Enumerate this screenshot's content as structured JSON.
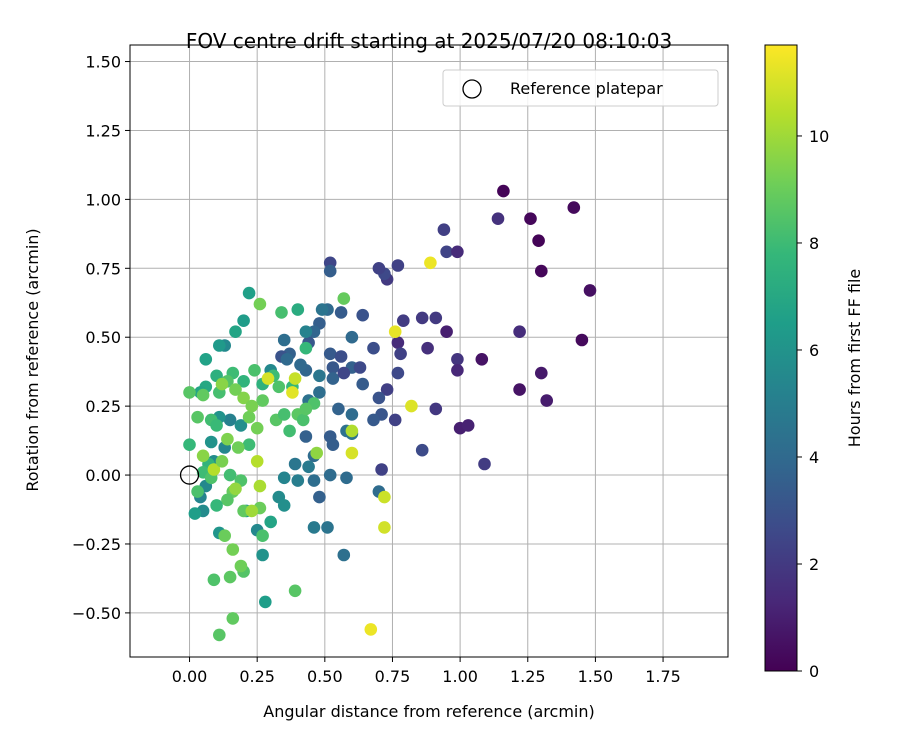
{
  "chart_data": {
    "type": "scatter",
    "title": "FOV centre drift starting at 2025/07/20 08:10:03",
    "xlabel": "Angular distance from reference (arcmin)",
    "ylabel": "Rotation from reference (arcmin)",
    "xlim": [
      -0.22,
      1.99
    ],
    "ylim": [
      -0.66,
      1.56
    ],
    "xticks": [
      "0.00",
      "0.25",
      "0.50",
      "0.75",
      "1.00",
      "1.25",
      "1.50",
      "1.75"
    ],
    "xtick_values": [
      0,
      0.25,
      0.5,
      0.75,
      1.0,
      1.25,
      1.5,
      1.75
    ],
    "yticks": [
      "−0.50",
      "−0.25",
      "0.00",
      "0.25",
      "0.50",
      "0.75",
      "1.00",
      "1.25",
      "1.50"
    ],
    "ytick_values": [
      -0.5,
      -0.25,
      0,
      0.25,
      0.5,
      0.75,
      1.0,
      1.25,
      1.5
    ],
    "grid": true,
    "legend": {
      "position": "top-right",
      "entries": [
        "Reference platepar"
      ]
    },
    "reference_point": {
      "name": "Reference platepar",
      "x": 0.0,
      "y": 0.0
    },
    "colorbar": {
      "label": "Hours from first FF file",
      "colormap": "viridis",
      "range": [
        0,
        11.7
      ],
      "ticks": [
        "0",
        "2",
        "4",
        "6",
        "8",
        "10"
      ],
      "tick_values": [
        0,
        2,
        4,
        6,
        8,
        10
      ]
    },
    "colormap_stops": [
      "#440154",
      "#482878",
      "#3e4989",
      "#31688e",
      "#26828e",
      "#1f9e89",
      "#35b779",
      "#6ece58",
      "#b5de2b",
      "#fde725"
    ],
    "points": [
      {
        "x": 1.16,
        "y": 1.03,
        "c": 0.1
      },
      {
        "x": 1.42,
        "y": 0.97,
        "c": 0.3
      },
      {
        "x": 1.26,
        "y": 0.93,
        "c": 0.2
      },
      {
        "x": 1.14,
        "y": 0.93,
        "c": 1.7
      },
      {
        "x": 1.29,
        "y": 0.85,
        "c": 0.1
      },
      {
        "x": 0.94,
        "y": 0.89,
        "c": 2.2
      },
      {
        "x": 0.95,
        "y": 0.81,
        "c": 2.4
      },
      {
        "x": 0.99,
        "y": 0.81,
        "c": 1.4
      },
      {
        "x": 1.3,
        "y": 0.74,
        "c": 0.2
      },
      {
        "x": 1.48,
        "y": 0.67,
        "c": 0.5
      },
      {
        "x": 1.22,
        "y": 0.52,
        "c": 1.5
      },
      {
        "x": 1.45,
        "y": 0.49,
        "c": 0.3
      },
      {
        "x": 1.08,
        "y": 0.42,
        "c": 0.6
      },
      {
        "x": 1.3,
        "y": 0.37,
        "c": 0.8
      },
      {
        "x": 1.22,
        "y": 0.31,
        "c": 0.6
      },
      {
        "x": 1.32,
        "y": 0.27,
        "c": 0.9
      },
      {
        "x": 1.0,
        "y": 0.17,
        "c": 1.0
      },
      {
        "x": 1.03,
        "y": 0.18,
        "c": 1.1
      },
      {
        "x": 1.09,
        "y": 0.04,
        "c": 2.1
      },
      {
        "x": 0.99,
        "y": 0.42,
        "c": 1.8
      },
      {
        "x": 0.99,
        "y": 0.38,
        "c": 1.3
      },
      {
        "x": 0.91,
        "y": 0.57,
        "c": 2.0
      },
      {
        "x": 0.95,
        "y": 0.52,
        "c": 1.0
      },
      {
        "x": 0.86,
        "y": 0.57,
        "c": 2.0
      },
      {
        "x": 0.88,
        "y": 0.46,
        "c": 1.6
      },
      {
        "x": 0.91,
        "y": 0.24,
        "c": 1.9
      },
      {
        "x": 0.86,
        "y": 0.09,
        "c": 2.7
      },
      {
        "x": 0.79,
        "y": 0.56,
        "c": 2.1
      },
      {
        "x": 0.77,
        "y": 0.48,
        "c": 1.4
      },
      {
        "x": 0.78,
        "y": 0.44,
        "c": 2.3
      },
      {
        "x": 0.77,
        "y": 0.76,
        "c": 2.3
      },
      {
        "x": 0.73,
        "y": 0.71,
        "c": 2.0
      },
      {
        "x": 0.72,
        "y": 0.73,
        "c": 2.6
      },
      {
        "x": 0.7,
        "y": 0.75,
        "c": 2.3
      },
      {
        "x": 0.77,
        "y": 0.37,
        "c": 2.6
      },
      {
        "x": 0.73,
        "y": 0.31,
        "c": 2.2
      },
      {
        "x": 0.76,
        "y": 0.2,
        "c": 2.3
      },
      {
        "x": 0.71,
        "y": 0.22,
        "c": 3.1
      },
      {
        "x": 0.68,
        "y": 0.2,
        "c": 3.3
      },
      {
        "x": 0.7,
        "y": 0.28,
        "c": 3.0
      },
      {
        "x": 0.71,
        "y": 0.02,
        "c": 2.3
      },
      {
        "x": 0.7,
        "y": -0.06,
        "c": 4.1
      },
      {
        "x": 0.68,
        "y": 0.46,
        "c": 2.8
      },
      {
        "x": 0.64,
        "y": 0.58,
        "c": 3.0
      },
      {
        "x": 0.52,
        "y": 0.77,
        "c": 2.5
      },
      {
        "x": 0.52,
        "y": 0.74,
        "c": 3.5
      },
      {
        "x": 0.56,
        "y": 0.59,
        "c": 3.4
      },
      {
        "x": 0.51,
        "y": 0.6,
        "c": 4.0
      },
      {
        "x": 0.49,
        "y": 0.6,
        "c": 4.5
      },
      {
        "x": 0.48,
        "y": 0.55,
        "c": 3.5
      },
      {
        "x": 0.46,
        "y": 0.52,
        "c": 3.8
      },
      {
        "x": 0.44,
        "y": 0.48,
        "c": 3.2
      },
      {
        "x": 0.6,
        "y": 0.5,
        "c": 4.0
      },
      {
        "x": 0.52,
        "y": 0.44,
        "c": 3.3
      },
      {
        "x": 0.56,
        "y": 0.43,
        "c": 2.8
      },
      {
        "x": 0.6,
        "y": 0.39,
        "c": 3.6
      },
      {
        "x": 0.63,
        "y": 0.39,
        "c": 2.6
      },
      {
        "x": 0.53,
        "y": 0.39,
        "c": 3.2
      },
      {
        "x": 0.53,
        "y": 0.35,
        "c": 3.7
      },
      {
        "x": 0.57,
        "y": 0.37,
        "c": 2.5
      },
      {
        "x": 0.48,
        "y": 0.36,
        "c": 4.6
      },
      {
        "x": 0.64,
        "y": 0.33,
        "c": 3.4
      },
      {
        "x": 0.6,
        "y": 0.22,
        "c": 4.1
      },
      {
        "x": 0.6,
        "y": 0.15,
        "c": 4.5
      },
      {
        "x": 0.55,
        "y": 0.24,
        "c": 3.7
      },
      {
        "x": 0.58,
        "y": 0.16,
        "c": 4.4
      },
      {
        "x": 0.52,
        "y": 0.14,
        "c": 3.4
      },
      {
        "x": 0.53,
        "y": 0.11,
        "c": 3.5
      },
      {
        "x": 0.46,
        "y": 0.07,
        "c": 4.1
      },
      {
        "x": 0.52,
        "y": 0.0,
        "c": 4.1
      },
      {
        "x": 0.58,
        "y": -0.01,
        "c": 4.1
      },
      {
        "x": 0.48,
        "y": -0.08,
        "c": 3.6
      },
      {
        "x": 0.46,
        "y": -0.19,
        "c": 4.8
      },
      {
        "x": 0.51,
        "y": -0.19,
        "c": 4.5
      },
      {
        "x": 0.57,
        "y": -0.29,
        "c": 4.3
      },
      {
        "x": 0.43,
        "y": 0.38,
        "c": 3.8
      },
      {
        "x": 0.41,
        "y": 0.4,
        "c": 4.0
      },
      {
        "x": 0.37,
        "y": 0.44,
        "c": 3.6
      },
      {
        "x": 0.34,
        "y": 0.43,
        "c": 3.0
      },
      {
        "x": 0.36,
        "y": 0.42,
        "c": 4.0
      },
      {
        "x": 0.44,
        "y": 0.27,
        "c": 4.4
      },
      {
        "x": 0.48,
        "y": 0.3,
        "c": 4.2
      },
      {
        "x": 0.43,
        "y": 0.14,
        "c": 3.6
      },
      {
        "x": 0.44,
        "y": 0.03,
        "c": 4.8
      },
      {
        "x": 0.46,
        "y": -0.02,
        "c": 4.2
      },
      {
        "x": 0.39,
        "y": 0.04,
        "c": 4.6
      },
      {
        "x": 0.4,
        "y": -0.02,
        "c": 5.0
      },
      {
        "x": 0.35,
        "y": 0.49,
        "c": 4.2
      },
      {
        "x": 0.43,
        "y": 0.52,
        "c": 5.2
      },
      {
        "x": 0.3,
        "y": 0.38,
        "c": 5.5
      },
      {
        "x": 0.35,
        "y": -0.01,
        "c": 5.3
      },
      {
        "x": 0.33,
        "y": -0.08,
        "c": 5.6
      },
      {
        "x": 0.35,
        "y": -0.11,
        "c": 5.8
      },
      {
        "x": 0.25,
        "y": -0.2,
        "c": 5.5
      },
      {
        "x": 0.27,
        "y": -0.29,
        "c": 6.0
      },
      {
        "x": 0.28,
        "y": -0.46,
        "c": 6.5
      },
      {
        "x": 0.22,
        "y": 0.66,
        "c": 6.6
      },
      {
        "x": 0.2,
        "y": 0.56,
        "c": 6.4
      },
      {
        "x": 0.17,
        "y": 0.52,
        "c": 6.8
      },
      {
        "x": 0.13,
        "y": 0.47,
        "c": 5.5
      },
      {
        "x": 0.11,
        "y": 0.47,
        "c": 6.3
      },
      {
        "x": 0.06,
        "y": 0.42,
        "c": 6.7
      },
      {
        "x": 0.06,
        "y": 0.32,
        "c": 7.0
      },
      {
        "x": 0.04,
        "y": 0.3,
        "c": 6.8
      },
      {
        "x": 0.15,
        "y": 0.2,
        "c": 5.1
      },
      {
        "x": 0.19,
        "y": 0.18,
        "c": 5.8
      },
      {
        "x": 0.11,
        "y": 0.21,
        "c": 6.0
      },
      {
        "x": 0.13,
        "y": 0.1,
        "c": 5.4
      },
      {
        "x": 0.08,
        "y": 0.12,
        "c": 6.0
      },
      {
        "x": 0.09,
        "y": 0.05,
        "c": 5.7
      },
      {
        "x": 0.06,
        "y": -0.04,
        "c": 5.5
      },
      {
        "x": 0.04,
        "y": -0.08,
        "c": 5.3
      },
      {
        "x": 0.05,
        "y": -0.13,
        "c": 5.6
      },
      {
        "x": 0.02,
        "y": -0.14,
        "c": 6.5
      },
      {
        "x": 0.11,
        "y": -0.21,
        "c": 6.1
      },
      {
        "x": 0.21,
        "y": -0.13,
        "c": 6.2
      },
      {
        "x": 0.3,
        "y": -0.17,
        "c": 6.8
      },
      {
        "x": 0.4,
        "y": 0.6,
        "c": 7.2
      },
      {
        "x": 0.43,
        "y": 0.46,
        "c": 7.8
      },
      {
        "x": 0.34,
        "y": 0.59,
        "c": 8.2
      },
      {
        "x": 0.38,
        "y": 0.32,
        "c": 7.8
      },
      {
        "x": 0.31,
        "y": 0.36,
        "c": 8.0
      },
      {
        "x": 0.33,
        "y": 0.32,
        "c": 8.4
      },
      {
        "x": 0.27,
        "y": 0.33,
        "c": 7.5
      },
      {
        "x": 0.24,
        "y": 0.38,
        "c": 8.3
      },
      {
        "x": 0.2,
        "y": 0.34,
        "c": 7.6
      },
      {
        "x": 0.16,
        "y": 0.37,
        "c": 8.0
      },
      {
        "x": 0.14,
        "y": 0.34,
        "c": 8.5
      },
      {
        "x": 0.1,
        "y": 0.36,
        "c": 7.4
      },
      {
        "x": 0.11,
        "y": 0.3,
        "c": 8.2
      },
      {
        "x": 0.05,
        "y": 0.29,
        "c": 8.8
      },
      {
        "x": 0.0,
        "y": 0.3,
        "c": 8.6
      },
      {
        "x": 0.03,
        "y": 0.21,
        "c": 8.6
      },
      {
        "x": 0.08,
        "y": 0.2,
        "c": 8.1
      },
      {
        "x": 0.1,
        "y": 0.18,
        "c": 7.9
      },
      {
        "x": 0.0,
        "y": 0.11,
        "c": 7.8
      },
      {
        "x": 0.07,
        "y": 0.04,
        "c": 7.6
      },
      {
        "x": 0.05,
        "y": 0.01,
        "c": 8.0
      },
      {
        "x": 0.08,
        "y": -0.01,
        "c": 8.4
      },
      {
        "x": 0.03,
        "y": -0.06,
        "c": 8.3
      },
      {
        "x": 0.15,
        "y": 0.0,
        "c": 8.1
      },
      {
        "x": 0.16,
        "y": -0.06,
        "c": 8.9
      },
      {
        "x": 0.14,
        "y": -0.09,
        "c": 8.6
      },
      {
        "x": 0.1,
        "y": -0.11,
        "c": 7.8
      },
      {
        "x": 0.19,
        "y": -0.02,
        "c": 8.4
      },
      {
        "x": 0.2,
        "y": -0.13,
        "c": 8.8
      },
      {
        "x": 0.26,
        "y": -0.12,
        "c": 9.0
      },
      {
        "x": 0.27,
        "y": -0.22,
        "c": 8.3
      },
      {
        "x": 0.22,
        "y": 0.11,
        "c": 8.0
      },
      {
        "x": 0.22,
        "y": 0.21,
        "c": 9.1
      },
      {
        "x": 0.25,
        "y": 0.17,
        "c": 9.2
      },
      {
        "x": 0.27,
        "y": 0.27,
        "c": 8.8
      },
      {
        "x": 0.26,
        "y": 0.62,
        "c": 9.2
      },
      {
        "x": 0.32,
        "y": 0.2,
        "c": 8.6
      },
      {
        "x": 0.35,
        "y": 0.22,
        "c": 8.2
      },
      {
        "x": 0.37,
        "y": 0.16,
        "c": 8.1
      },
      {
        "x": 0.4,
        "y": 0.22,
        "c": 8.7
      },
      {
        "x": 0.42,
        "y": 0.2,
        "c": 8.3
      },
      {
        "x": 0.46,
        "y": 0.26,
        "c": 8.4
      },
      {
        "x": 0.43,
        "y": 0.24,
        "c": 8.6
      },
      {
        "x": 0.57,
        "y": 0.64,
        "c": 8.9
      },
      {
        "x": 0.39,
        "y": 0.35,
        "c": 10.7
      },
      {
        "x": 0.39,
        "y": -0.42,
        "c": 8.6
      },
      {
        "x": 0.2,
        "y": -0.35,
        "c": 8.5
      },
      {
        "x": 0.19,
        "y": -0.33,
        "c": 9.1
      },
      {
        "x": 0.15,
        "y": -0.37,
        "c": 8.7
      },
      {
        "x": 0.16,
        "y": -0.52,
        "c": 8.8
      },
      {
        "x": 0.09,
        "y": -0.38,
        "c": 8.4
      },
      {
        "x": 0.11,
        "y": -0.58,
        "c": 8.6
      },
      {
        "x": 0.16,
        "y": -0.27,
        "c": 9.2
      },
      {
        "x": 0.13,
        "y": -0.22,
        "c": 9.0
      },
      {
        "x": 0.47,
        "y": 0.08,
        "c": 9.7
      },
      {
        "x": 0.25,
        "y": 0.05,
        "c": 10.4
      },
      {
        "x": 0.17,
        "y": -0.05,
        "c": 9.8
      },
      {
        "x": 0.26,
        "y": -0.04,
        "c": 10.2
      },
      {
        "x": 0.23,
        "y": -0.13,
        "c": 10.0
      },
      {
        "x": 0.6,
        "y": 0.16,
        "c": 10.3
      },
      {
        "x": 0.6,
        "y": 0.08,
        "c": 11.0
      },
      {
        "x": 0.72,
        "y": -0.08,
        "c": 10.8
      },
      {
        "x": 0.72,
        "y": -0.19,
        "c": 10.9
      },
      {
        "x": 0.76,
        "y": 0.52,
        "c": 11.3
      },
      {
        "x": 0.82,
        "y": 0.25,
        "c": 11.1
      },
      {
        "x": 0.89,
        "y": 0.77,
        "c": 11.4
      },
      {
        "x": 0.67,
        "y": -0.56,
        "c": 11.4
      },
      {
        "x": 0.38,
        "y": 0.3,
        "c": 11.2
      },
      {
        "x": 0.29,
        "y": 0.35,
        "c": 11.0
      },
      {
        "x": 0.09,
        "y": 0.02,
        "c": 10.4
      },
      {
        "x": 0.05,
        "y": 0.07,
        "c": 9.6
      },
      {
        "x": 0.12,
        "y": 0.05,
        "c": 9.3
      },
      {
        "x": 0.18,
        "y": 0.1,
        "c": 9.1
      },
      {
        "x": 0.14,
        "y": 0.13,
        "c": 9.4
      },
      {
        "x": 0.2,
        "y": 0.28,
        "c": 9.5
      },
      {
        "x": 0.23,
        "y": 0.25,
        "c": 9.3
      },
      {
        "x": 0.17,
        "y": 0.31,
        "c": 9.2
      },
      {
        "x": 0.12,
        "y": 0.33,
        "c": 9.6
      }
    ]
  }
}
